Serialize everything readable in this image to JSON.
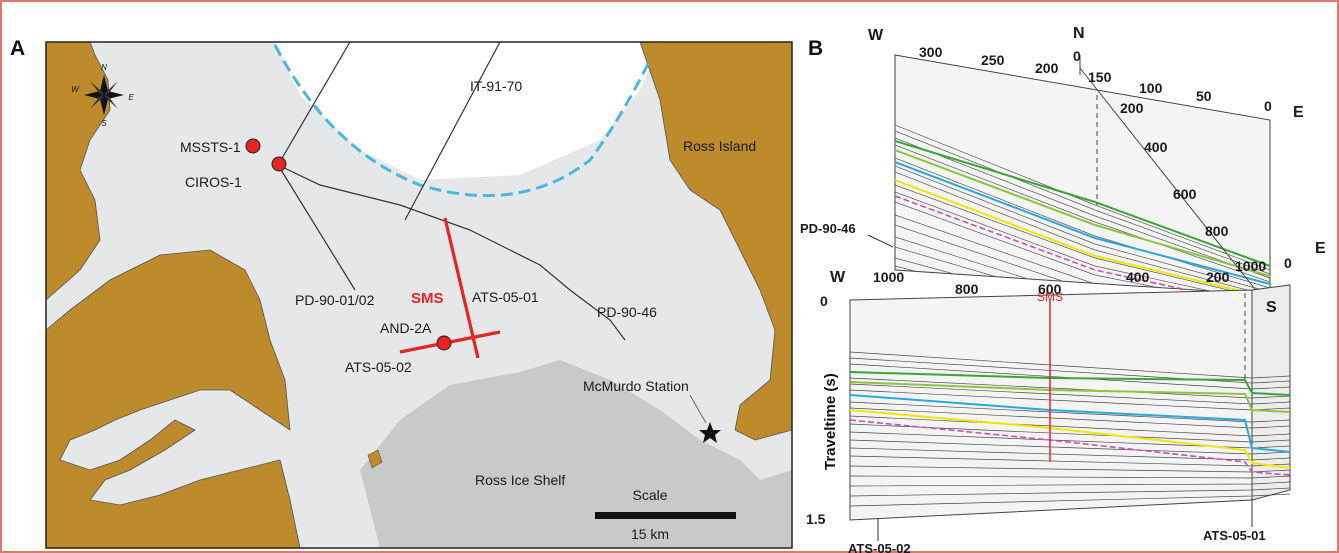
{
  "panel_a": {
    "letter": "A",
    "compass": {
      "n": "N",
      "s": "S",
      "e": "E",
      "w": "W"
    },
    "land_labels": {
      "ross_island": "Ross Island",
      "ross_ice_shelf": "Ross Ice Shelf"
    },
    "sites": {
      "mssts": "MSSTS-1",
      "ciros": "CIROS-1",
      "and2a": "AND-2A",
      "mcmurdo": "McMurdo Station"
    },
    "lines": {
      "it9170": "IT-91-70",
      "pd9001": "PD-90-01/02",
      "ats0501": "ATS-05-01",
      "ats0502": "ATS-05-02",
      "pd9046": "PD-90-46",
      "sms": "SMS"
    },
    "scale": {
      "title": "Scale",
      "label": "15 km"
    },
    "colors": {
      "land": "#bd8a2c",
      "sea_ice": "#e6e7e8",
      "ice_shelf": "#c8c9cb",
      "ice_edge": "#4ab6e6",
      "sms_line": "#e52521",
      "site_dot": "#e52521"
    }
  },
  "panel_b": {
    "letter": "B",
    "upper_top_dirs": {
      "w": "W",
      "n": "N",
      "e": "E"
    },
    "upper_top_ticks": [
      "300",
      "250",
      "200",
      "0",
      "150",
      "100",
      "50",
      "0"
    ],
    "upper_diag_ticks": [
      "200",
      "400",
      "600",
      "800",
      "1000"
    ],
    "lower_dirs": {
      "w": "W",
      "e": "E",
      "s": "S"
    },
    "lower_ticks": [
      "1000",
      "800",
      "600",
      "400",
      "200",
      "0"
    ],
    "y_axis": {
      "label": "Traveltime (s)",
      "ticks": [
        "0",
        "1.5"
      ]
    },
    "line_labels": {
      "pd9046": "PD-90-46",
      "ats0502": "ATS-05-02",
      "ats0501": "ATS-05-01",
      "sms": "SMS"
    },
    "horizon_colors": [
      "#3aa63a",
      "#8cc63f",
      "#29a8df",
      "#f2e600",
      "#d14fb0"
    ]
  }
}
